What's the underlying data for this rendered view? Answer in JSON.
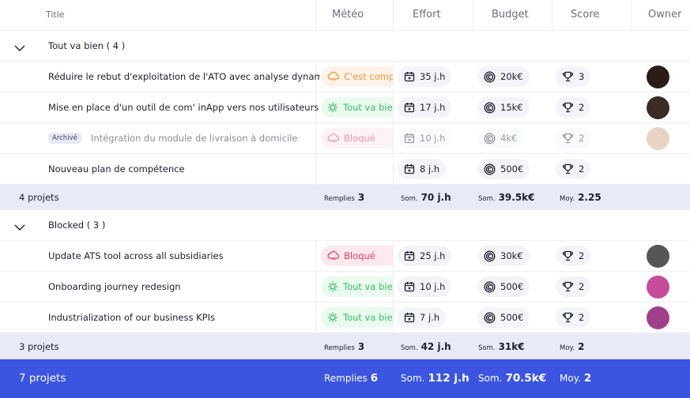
{
  "header": {
    "columns": [
      "Title",
      "Météo",
      "Effort",
      "Budget",
      "Score",
      "Owner"
    ]
  },
  "groups": [
    {
      "label": "Tout va bien ( 4 )",
      "rows": [
        {
          "title": "Réduire le rebut d'exploitation de l'ATO avec analyse dynamique de",
          "meteo": "C'est compliqué",
          "effort": "35 j.h",
          "budget": "20k€",
          "score": "3"
        },
        {
          "title": "Mise en place d'un outil de com' inApp vers nos utilisateurs",
          "meteo": "Tout va bien",
          "effort": "17 j.h",
          "budget": "15k€",
          "score": "2"
        },
        {
          "badge": "Archivé",
          "title": "Intégration du module de livraison à domicile",
          "meteo": "Bloqué",
          "effort": "10 j.h",
          "budget": "4k€",
          "score": "2"
        },
        {
          "title": "Nouveau plan de compétence",
          "effort": "8 j.h",
          "budget": "500€",
          "score": "2"
        }
      ],
      "summary": {
        "count": "4 projets",
        "meteo_label": "Remplies",
        "meteo_value": "3",
        "effort_label": "Som.",
        "effort_value": "70 j.h",
        "budget_label": "Som.",
        "budget_value": "39.5k€",
        "score_label": "Moy.",
        "score_value": "2.25"
      }
    },
    {
      "label": "Blocked ( 3 )",
      "rows": [
        {
          "title": "Update ATS tool across all subsidiaries",
          "meteo": "Bloqué",
          "effort": "25 j.h",
          "budget": "30k€",
          "score": "2"
        },
        {
          "title": "Onboarding journey redesign",
          "meteo": "Tout va bien",
          "effort": "10 j.h",
          "budget": "500€",
          "score": "2"
        },
        {
          "title": "Industrialization of our business KPIs",
          "meteo": "Tout va bien",
          "effort": "7 j.h",
          "budget": "500€",
          "score": "2"
        }
      ],
      "summary": {
        "count": "3 projets",
        "meteo_label": "Remplies",
        "meteo_value": "3",
        "effort_label": "Som.",
        "effort_value": "42 j.h",
        "budget_label": "Som.",
        "budget_value": "31k€",
        "score_label": "Moy.",
        "score_value": "2"
      }
    }
  ],
  "total": {
    "count": "7 projets",
    "meteo_label": "Remplies",
    "meteo_value": "6",
    "effort_label": "Som.",
    "effort_value": "112 j.h",
    "budget_label": "Som.",
    "budget_value": "70.5k€",
    "score_label": "Moy.",
    "score_value": "2"
  }
}
